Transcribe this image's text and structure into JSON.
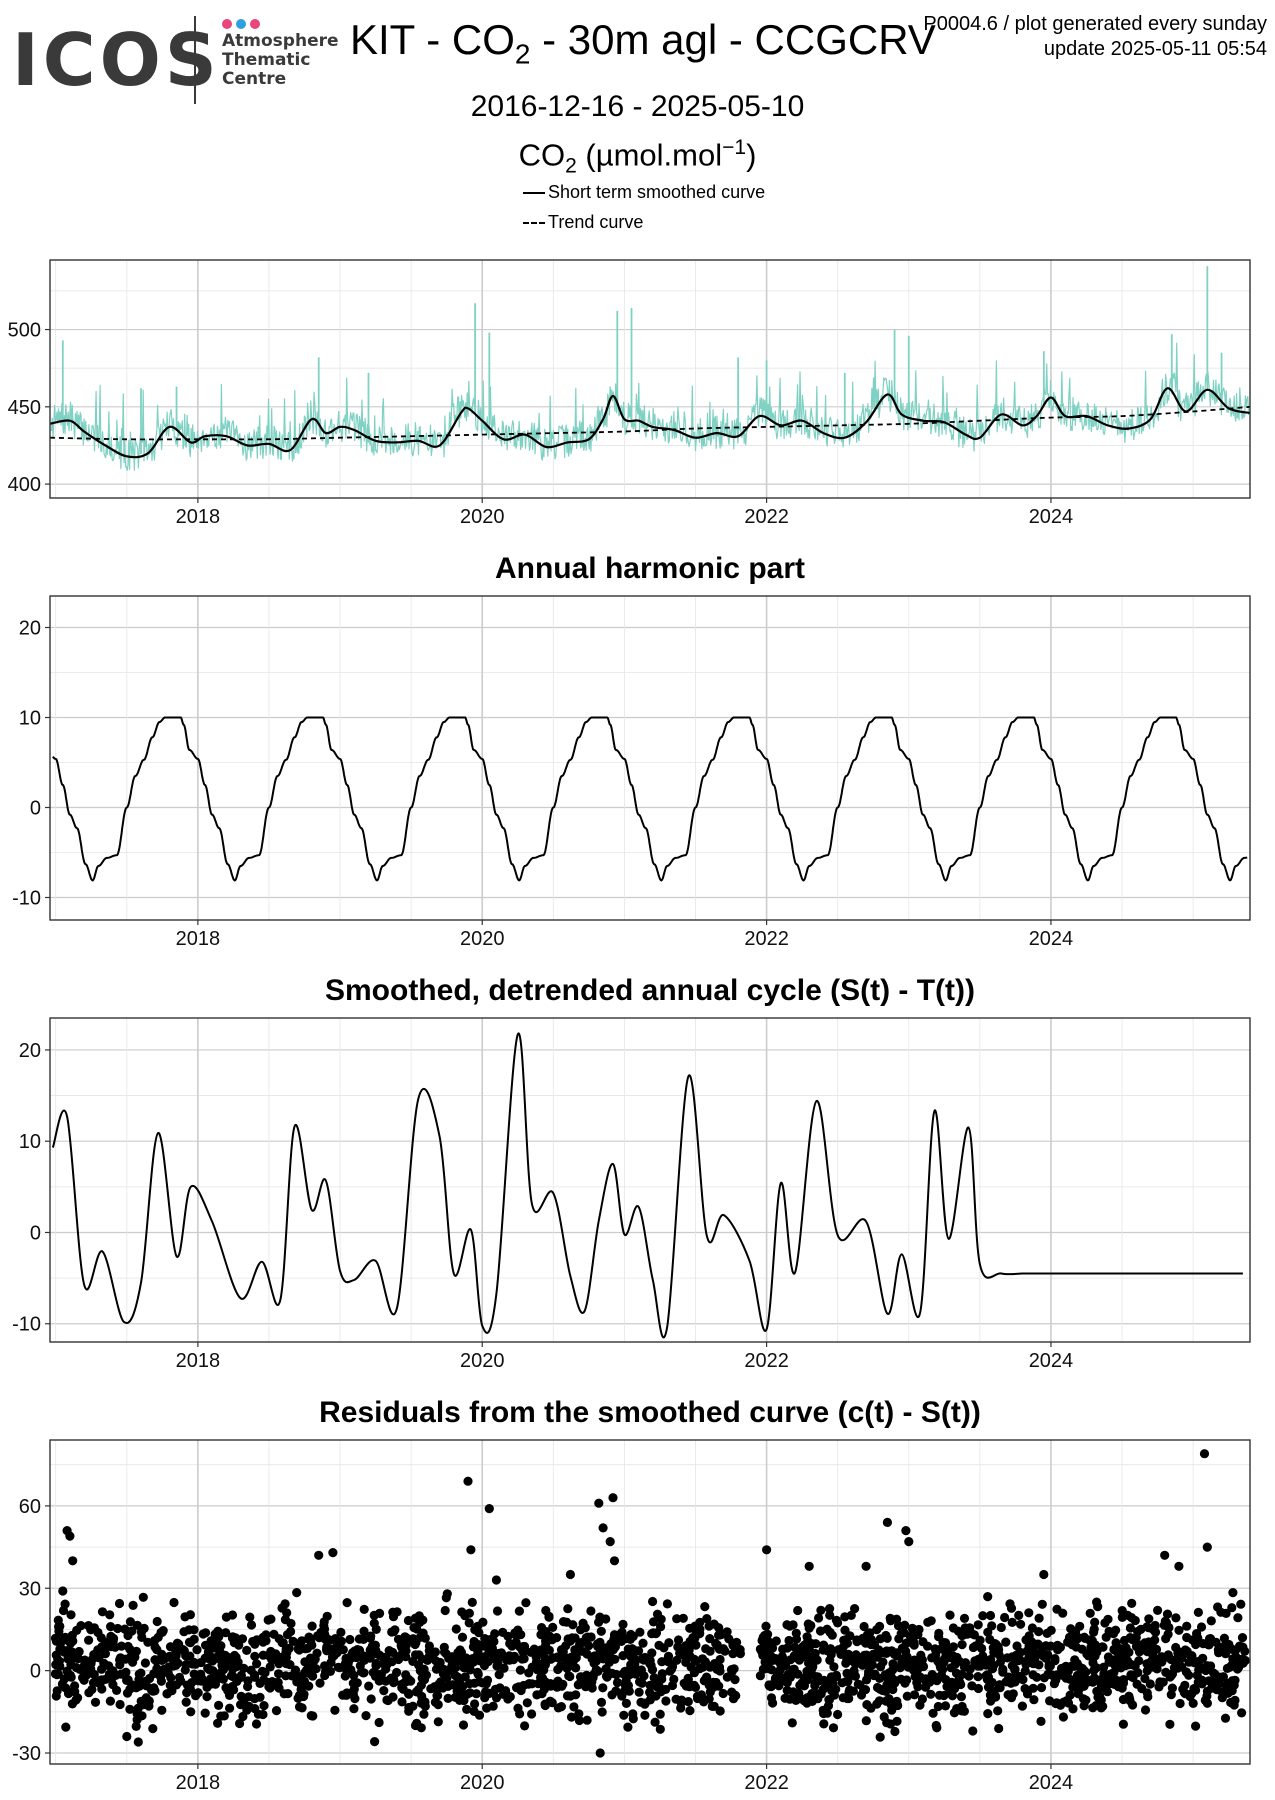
{
  "header": {
    "logo_text": "ICOS",
    "logo_sub": [
      "Atmosphere",
      "Thematic",
      "Centre"
    ],
    "logo_dot_colors": [
      "#e8457a",
      "#2f9fe0",
      "#e8457a"
    ],
    "title_prefix": "KIT - CO",
    "title_sub": "2",
    "title_suffix": " - 30m agl - CCGCRV",
    "corner_line1": "P0004.6 / plot generated every sunday",
    "corner_line2": "update  2025-05-11 05:54",
    "date_range": "2016-12-16 - 2025-05-10",
    "unit_prefix": "CO",
    "unit_sub": "2",
    "unit_mid": " (µmol.mol",
    "unit_sup": "−1",
    "unit_suffix": ")"
  },
  "legend": {
    "smoothed_label": "Short term smoothed curve",
    "trend_label": "Trend curve"
  },
  "colors": {
    "raw": "#7fd1c3",
    "line": "#000000",
    "grid": "#e6e6e6",
    "grid_major": "#cccccc"
  },
  "chart_data": [
    {
      "id": "co2",
      "type": "line",
      "title": "",
      "xlabel": "",
      "ylabel": "",
      "xlim": [
        2016.96,
        2025.4
      ],
      "ylim": [
        391,
        545
      ],
      "xticks": [
        2018,
        2020,
        2022,
        2024
      ],
      "xtick_labels": [
        "2018",
        "2020",
        "2022",
        "2024"
      ],
      "yticks": [
        400,
        450,
        500
      ],
      "ytick_labels": [
        "400",
        "450",
        "500"
      ],
      "series": [
        {
          "name": "Short term smoothed curve",
          "style": "solid",
          "x": [
            2016.96,
            2017.1,
            2017.2,
            2017.35,
            2017.5,
            2017.65,
            2017.8,
            2017.95,
            2018.05,
            2018.2,
            2018.35,
            2018.5,
            2018.65,
            2018.8,
            2018.9,
            2019.0,
            2019.1,
            2019.25,
            2019.4,
            2019.55,
            2019.7,
            2019.85,
            2019.9,
            2020.0,
            2020.15,
            2020.3,
            2020.45,
            2020.6,
            2020.75,
            2020.85,
            2020.92,
            2021.0,
            2021.1,
            2021.2,
            2021.35,
            2021.5,
            2021.65,
            2021.8,
            2021.95,
            2022.1,
            2022.25,
            2022.4,
            2022.55,
            2022.7,
            2022.85,
            2022.95,
            2023.1,
            2023.25,
            2023.4,
            2023.5,
            2023.65,
            2023.8,
            2023.9,
            2024.0,
            2024.1,
            2024.25,
            2024.4,
            2024.55,
            2024.7,
            2024.82,
            2024.95,
            2025.1,
            2025.25,
            2025.4
          ],
          "y": [
            439,
            441,
            434,
            425,
            418,
            420,
            437,
            427,
            431,
            431,
            425,
            426,
            422,
            442,
            433,
            437,
            435,
            428,
            427,
            428,
            425,
            446,
            449,
            441,
            429,
            432,
            424,
            427,
            429,
            442,
            457,
            442,
            441,
            437,
            435,
            430,
            433,
            431,
            444,
            438,
            441,
            433,
            430,
            440,
            458,
            445,
            441,
            440,
            432,
            430,
            445,
            438,
            444,
            456,
            444,
            444,
            438,
            436,
            442,
            462,
            447,
            461,
            449,
            446
          ]
        },
        {
          "name": "Trend curve",
          "style": "dashed",
          "x": [
            2016.96,
            2017.5,
            2018.0,
            2018.5,
            2019.0,
            2019.5,
            2020.0,
            2020.5,
            2021.0,
            2021.5,
            2022.0,
            2022.5,
            2023.0,
            2023.5,
            2024.0,
            2024.5,
            2025.0,
            2025.4
          ],
          "y": [
            430,
            429,
            429,
            429,
            430,
            431,
            432,
            433,
            434,
            436,
            437,
            438,
            439,
            441,
            443,
            444,
            447,
            450
          ]
        }
      ],
      "raw_spikes": [
        {
          "x": 2017.05,
          "y": 493
        },
        {
          "x": 2017.6,
          "y": 462
        },
        {
          "x": 2017.85,
          "y": 463
        },
        {
          "x": 2018.85,
          "y": 482
        },
        {
          "x": 2019.2,
          "y": 472
        },
        {
          "x": 2019.95,
          "y": 517
        },
        {
          "x": 2020.05,
          "y": 498
        },
        {
          "x": 2020.95,
          "y": 512
        },
        {
          "x": 2021.05,
          "y": 514
        },
        {
          "x": 2021.8,
          "y": 482
        },
        {
          "x": 2022.0,
          "y": 480
        },
        {
          "x": 2022.55,
          "y": 472
        },
        {
          "x": 2022.9,
          "y": 500
        },
        {
          "x": 2023.0,
          "y": 496
        },
        {
          "x": 2023.95,
          "y": 486
        },
        {
          "x": 2024.85,
          "y": 497
        },
        {
          "x": 2025.1,
          "y": 541
        },
        {
          "x": 2025.2,
          "y": 485
        }
      ]
    },
    {
      "id": "harmonic",
      "type": "line",
      "title": "Annual harmonic part",
      "xlabel": "",
      "ylabel": "",
      "xlim": [
        2016.96,
        2025.4
      ],
      "ylim": [
        -12.5,
        23.5
      ],
      "xticks": [
        2018,
        2020,
        2022,
        2024
      ],
      "xtick_labels": [
        "2018",
        "2020",
        "2022",
        "2024"
      ],
      "yticks": [
        -10,
        0,
        10,
        20
      ],
      "ytick_labels": [
        "-10",
        "0",
        "10",
        "20"
      ],
      "cycle": {
        "phase": [
          0.0,
          0.02,
          0.06,
          0.12,
          0.17,
          0.22,
          0.27,
          0.33,
          0.38,
          0.42,
          0.48,
          0.55,
          0.62,
          0.68,
          0.74,
          0.8,
          0.85,
          0.89,
          0.93,
          0.97,
          1.0
        ],
        "value": [
          10.0,
          9.2,
          6.4,
          5.4,
          2.5,
          -0.8,
          -2.3,
          -6.3,
          -8.1,
          -6.5,
          -5.6,
          -5.3,
          0.0,
          3.5,
          5.3,
          7.8,
          9.5,
          10.0,
          10.0,
          10.0,
          10.0
        ],
        "peak_year_offset": 0.88
      }
    },
    {
      "id": "detrended",
      "type": "line",
      "title": "Smoothed, detrended annual cycle (S(t) - T(t))",
      "xlabel": "",
      "ylabel": "",
      "xlim": [
        2016.96,
        2025.4
      ],
      "ylim": [
        -12.0,
        23.5
      ],
      "xticks": [
        2018,
        2020,
        2022,
        2024
      ],
      "xtick_labels": [
        "2018",
        "2020",
        "2022",
        "2024"
      ],
      "yticks": [
        -10,
        0,
        10,
        20
      ],
      "ytick_labels": [
        "-10",
        "0",
        "10",
        "20"
      ],
      "x": [
        2016.98,
        2017.08,
        2017.2,
        2017.33,
        2017.48,
        2017.6,
        2017.72,
        2017.85,
        2017.95,
        2018.1,
        2018.3,
        2018.45,
        2018.58,
        2018.68,
        2018.8,
        2018.9,
        2019.0,
        2019.1,
        2019.25,
        2019.4,
        2019.55,
        2019.7,
        2019.8,
        2019.92,
        2020.0,
        2020.1,
        2020.25,
        2020.35,
        2020.5,
        2020.62,
        2020.72,
        2020.82,
        2020.92,
        2021.0,
        2021.1,
        2021.2,
        2021.3,
        2021.45,
        2021.58,
        2021.7,
        2021.88,
        2022.0,
        2022.1,
        2022.2,
        2022.35,
        2022.5,
        2022.7,
        2022.85,
        2022.95,
        2023.08,
        2023.18,
        2023.28,
        2023.42,
        2023.5,
        2023.65,
        2023.8,
        2023.9,
        2024.0,
        2024.1,
        2024.2,
        2024.3,
        2024.45,
        2024.55,
        2024.62,
        2024.75,
        2024.82,
        2024.95,
        2025.1,
        2025.25,
        2025.35
      ],
      "y": [
        9.3,
        12.7,
        -5.7,
        -2.1,
        -9.8,
        -5.5,
        10.9,
        -2.6,
        5.0,
        1.2,
        -7.2,
        -3.2,
        -7.4,
        11.6,
        2.5,
        5.7,
        -4.2,
        -5.2,
        -3.1,
        -8.3,
        14.6,
        10.5,
        -4.5,
        0.3,
        -10.2,
        -6.7,
        21.7,
        3.1,
        4.3,
        -4.8,
        -8.6,
        1.3,
        7.5,
        -0.2,
        2.8,
        -5.2,
        -10.4,
        17.1,
        -0.4,
        1.9,
        -3.1,
        -10.6,
        5.4,
        -4.4,
        14.4,
        -0.3,
        1.2,
        -8.9,
        -2.4,
        -8.8,
        13.3,
        -0.7,
        11.5,
        -3.5,
        -4.5,
        -4.5,
        -4.5,
        -4.5,
        -4.5,
        -4.5,
        -4.5,
        -4.5,
        -4.5,
        -4.5,
        -4.5,
        -4.5,
        -4.5,
        -4.5,
        -4.5,
        -4.5
      ]
    },
    {
      "id": "residuals",
      "type": "scatter",
      "title": "Residuals from the smoothed curve (c(t) - S(t))",
      "xlabel": "",
      "ylabel": "",
      "xlim": [
        2016.96,
        2025.4
      ],
      "ylim": [
        -34,
        84
      ],
      "xticks": [
        2018,
        2020,
        2022,
        2024
      ],
      "xtick_labels": [
        "2018",
        "2020",
        "2022",
        "2024"
      ],
      "yticks": [
        -30,
        0,
        30,
        60
      ],
      "ytick_labels": [
        "-30",
        "0",
        "30",
        "60"
      ],
      "bulk_range": [
        -26,
        30
      ],
      "gap": [
        2021.82,
        2021.95
      ],
      "outliers": [
        {
          "x": 2017.08,
          "y": 51
        },
        {
          "x": 2017.1,
          "y": 49
        },
        {
          "x": 2017.12,
          "y": 40
        },
        {
          "x": 2017.05,
          "y": 29
        },
        {
          "x": 2017.5,
          "y": -24
        },
        {
          "x": 2018.85,
          "y": 42
        },
        {
          "x": 2018.95,
          "y": 43
        },
        {
          "x": 2019.9,
          "y": 69
        },
        {
          "x": 2019.92,
          "y": 44
        },
        {
          "x": 2020.05,
          "y": 59
        },
        {
          "x": 2020.1,
          "y": 33
        },
        {
          "x": 2020.62,
          "y": 35
        },
        {
          "x": 2020.82,
          "y": 61
        },
        {
          "x": 2020.92,
          "y": 63
        },
        {
          "x": 2020.85,
          "y": 52
        },
        {
          "x": 2020.9,
          "y": 47
        },
        {
          "x": 2020.93,
          "y": 40
        },
        {
          "x": 2020.83,
          "y": -30
        },
        {
          "x": 2022.0,
          "y": 44
        },
        {
          "x": 2022.3,
          "y": 38
        },
        {
          "x": 2022.7,
          "y": 38
        },
        {
          "x": 2022.85,
          "y": 54
        },
        {
          "x": 2022.98,
          "y": 51
        },
        {
          "x": 2023.0,
          "y": 47
        },
        {
          "x": 2023.95,
          "y": 35
        },
        {
          "x": 2024.8,
          "y": 42
        },
        {
          "x": 2024.9,
          "y": 38
        },
        {
          "x": 2025.08,
          "y": 79
        },
        {
          "x": 2025.1,
          "y": 45
        }
      ]
    }
  ]
}
